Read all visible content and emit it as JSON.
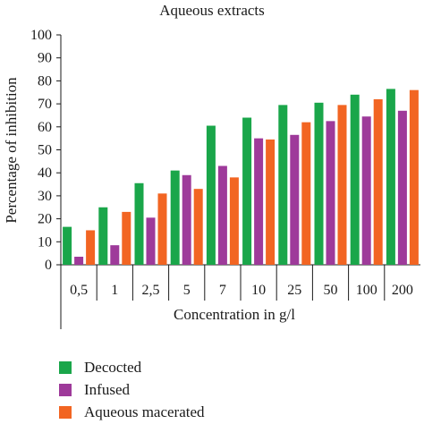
{
  "chart_data": {
    "type": "bar",
    "title": "Aqueous extracts",
    "xlabel": "Concentration in g/l",
    "ylabel": "Percentage of inhibition",
    "ylim": [
      0,
      100
    ],
    "yticks": [
      "0",
      "10",
      "20",
      "30",
      "40",
      "50",
      "60",
      "70",
      "80",
      "90",
      "100"
    ],
    "categories": [
      "0,5",
      "1",
      "2,5",
      "5",
      "7",
      "10",
      "25",
      "50",
      "100",
      "200"
    ],
    "series": [
      {
        "name": "Decocted",
        "color": "#1aa64a",
        "values": [
          16.5,
          25,
          35.5,
          41,
          60.5,
          64,
          69.5,
          70.5,
          74,
          76.5
        ]
      },
      {
        "name": "Infused",
        "color": "#9e3a9a",
        "values": [
          3.5,
          8.5,
          20.5,
          39,
          43,
          55,
          56.5,
          62.5,
          64.5,
          67
        ]
      },
      {
        "name": "Aqueous macerated",
        "color": "#f26522",
        "values": [
          15,
          23,
          31,
          33,
          38,
          54.5,
          62,
          69.5,
          72,
          76
        ]
      }
    ],
    "grid": false,
    "legend_position": "bottom-left"
  }
}
